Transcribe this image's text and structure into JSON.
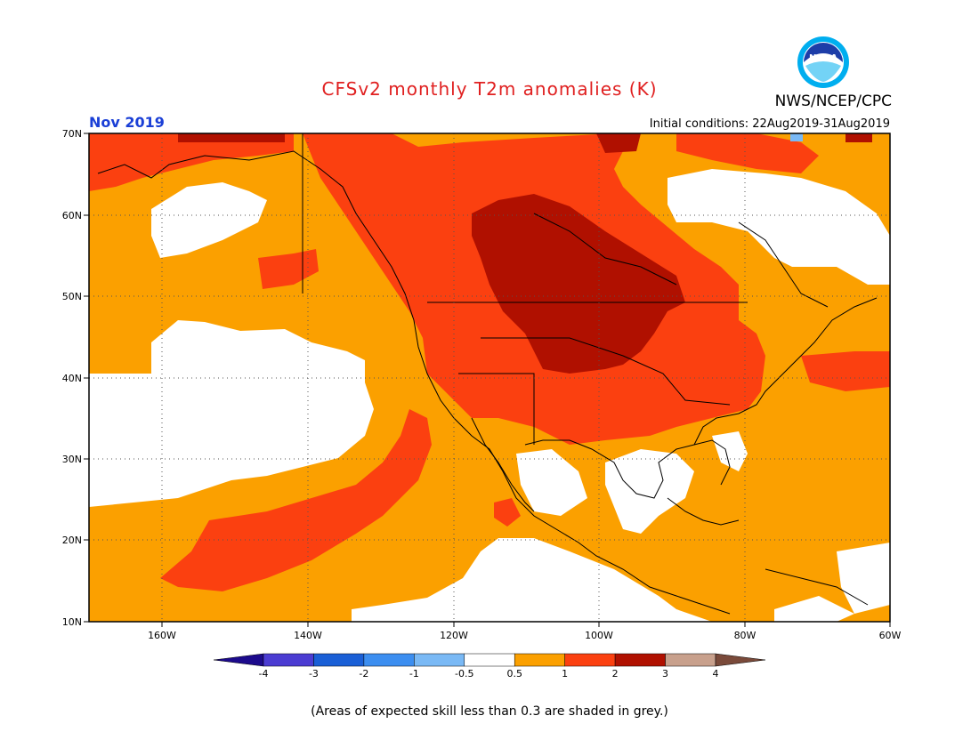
{
  "title": "CFSv2 monthly T2m anomalies (K)",
  "month": "Nov 2019",
  "agency": "NWS/NCEP/CPC",
  "initial_conditions": "Initial conditions: 22Aug2019-31Aug2019",
  "logo_text": "NOAA",
  "footnote": "(Areas of expected skill less than 0.3 are shaded in grey.)",
  "lat_labels": [
    "70N",
    "60N",
    "50N",
    "40N",
    "30N",
    "20N",
    "10N"
  ],
  "lon_labels": [
    "160W",
    "140W",
    "120W",
    "100W",
    "80W",
    "60W"
  ],
  "colorbar": {
    "tick_labels": [
      "-4",
      "-3",
      "-2",
      "-1",
      "-0.5",
      "0.5",
      "1",
      "2",
      "3",
      "4"
    ],
    "colors": [
      "#1c0a8c",
      "#4b3cd2",
      "#1a5fd6",
      "#3c8ef0",
      "#7ab9f5",
      "#ffffff",
      "#fba000",
      "#fb4010",
      "#b01000",
      "#c8a08c",
      "#7a4a3a"
    ]
  },
  "colors": {
    "title": "#e02020",
    "month": "#1a3fd6",
    "anomaly_0_5_to_1": "#fba000",
    "anomaly_1_to_2": "#fb4010",
    "anomaly_2_to_3": "#b01000",
    "anomaly_neutral": "#ffffff",
    "anomaly_minus_1": "#7ab9f5"
  }
}
